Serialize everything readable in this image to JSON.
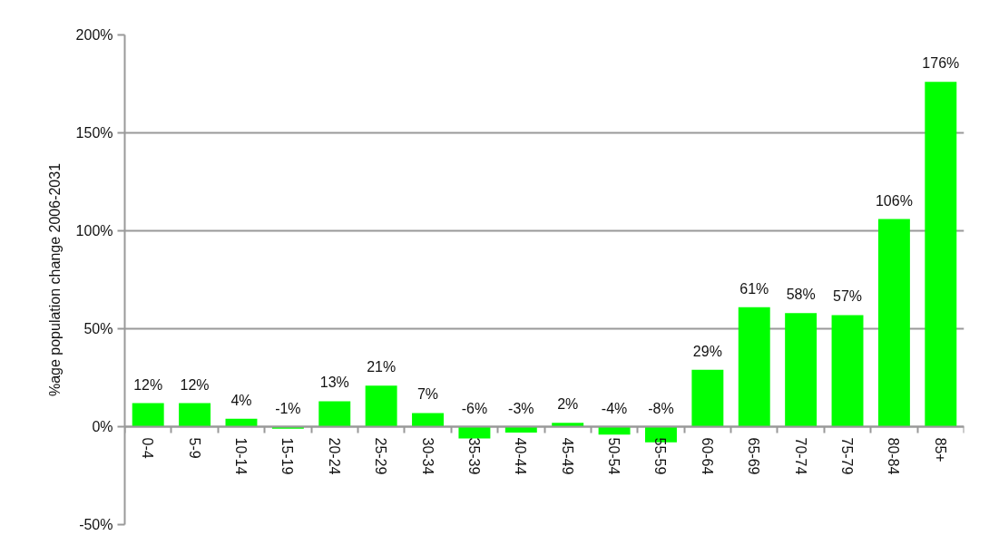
{
  "chart_data": {
    "type": "bar",
    "ylabel": "%age population change 2006-2031",
    "categories": [
      "0-4",
      "5-9",
      "10-14",
      "15-19",
      "20-24",
      "25-29",
      "30-34",
      "35-39",
      "40-44",
      "45-49",
      "50-54",
      "55-59",
      "60-64",
      "65-69",
      "70-74",
      "75-79",
      "80-84",
      "85+"
    ],
    "values": [
      12,
      12,
      4,
      -1,
      13,
      21,
      7,
      -6,
      -3,
      2,
      -4,
      -8,
      29,
      61,
      58,
      57,
      106,
      176
    ],
    "value_labels": [
      "12%",
      "12%",
      "4%",
      "-1%",
      "13%",
      "21%",
      "7%",
      "-6%",
      "-3%",
      "2%",
      "-4%",
      "-8%",
      "29%",
      "61%",
      "58%",
      "57%",
      "106%",
      "176%"
    ],
    "color": "#00ff00",
    "ylim": [
      -50,
      200
    ],
    "yticks": [
      {
        "value": -50,
        "label": "-50%"
      },
      {
        "value": 0,
        "label": "0%"
      },
      {
        "value": 50,
        "label": "50%"
      },
      {
        "value": 100,
        "label": "100%"
      },
      {
        "value": 150,
        "label": "150%"
      },
      {
        "value": 200,
        "label": "200%"
      }
    ],
    "grid": "y"
  }
}
